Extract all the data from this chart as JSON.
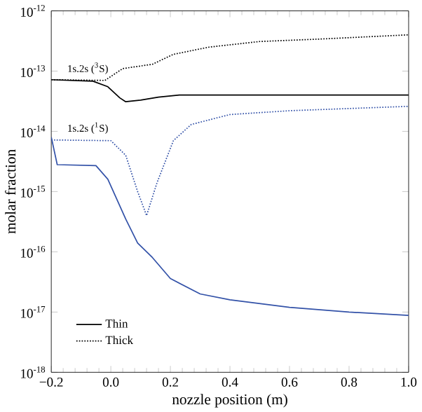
{
  "chart_data": {
    "type": "line",
    "xlabel": "nozzle position (m)",
    "ylabel": "molar fraction",
    "log": "y",
    "xlim": [
      -0.2,
      1.0
    ],
    "ylim": [
      1e-18,
      1e-12
    ],
    "xticks": [
      {
        "value": -0.2,
        "label": "−0.2"
      },
      {
        "value": 0,
        "label": "0.0"
      },
      {
        "value": 0.2,
        "label": "0.2"
      },
      {
        "value": 0.4,
        "label": "0.4"
      },
      {
        "value": 0.6,
        "label": "0.6"
      },
      {
        "value": 0.8,
        "label": "0.8"
      },
      {
        "value": 1.0,
        "label": "1.0"
      }
    ],
    "yticks": [
      {
        "value": 1e-18,
        "label": "10$^{-18}$"
      },
      {
        "value": 1e-17,
        "label": "10$^{-17}$"
      },
      {
        "value": 1e-16,
        "label": "10$^{-16}$"
      },
      {
        "value": 1e-15,
        "label": "10$^{-15}$"
      },
      {
        "value": 1e-14,
        "label": "10$^{-14}$"
      },
      {
        "value": 1e-13,
        "label": "10$^{-13}$"
      },
      {
        "value": 1e-12,
        "label": "10$^{-12}$"
      }
    ],
    "legend": "bottom left",
    "grid": false,
    "series": [
      {
        "name": "Thin",
        "color": "#000000",
        "line_style": "solid",
        "x": [
          -0.2,
          -0.06,
          -0.01,
          0.03,
          0.05,
          0.1,
          0.16,
          0.23,
          0.5,
          1.0
        ],
        "values": [
          7.2e-14,
          6.8e-14,
          5.5e-14,
          3.6e-14,
          3.1e-14,
          3.3e-14,
          3.7e-14,
          4e-14,
          4e-14,
          4e-14
        ]
      },
      {
        "name": "Thick",
        "color": "#000000",
        "line_style": "dotted",
        "x": [
          -0.2,
          -0.02,
          0.04,
          0.14,
          0.21,
          0.33,
          0.5,
          0.7,
          1.0
        ],
        "values": [
          7.2e-14,
          7e-14,
          1.1e-13,
          1.3e-13,
          1.9e-13,
          2.5e-13,
          3.1e-13,
          3.4e-13,
          4e-13
        ]
      },
      {
        "color": "#3352a8",
        "line_style": "solid",
        "x": [
          -0.2,
          -0.18,
          -0.05,
          -0.01,
          0.05,
          0.09,
          0.14,
          0.2,
          0.3,
          0.4,
          0.6,
          0.8,
          1.0
        ],
        "values": [
          8e-15,
          2.8e-15,
          2.7e-15,
          1.6e-15,
          3.5e-16,
          1.4e-16,
          8e-17,
          3.6e-17,
          2e-17,
          1.6e-17,
          1.2e-17,
          1e-17,
          8.8e-18
        ]
      },
      {
        "color": "#3352a8",
        "line_style": "dotted",
        "x": [
          -0.2,
          0.0,
          0.05,
          0.09,
          0.12,
          0.155,
          0.21,
          0.27,
          0.4,
          0.6,
          1.0
        ],
        "values": [
          7.2e-15,
          7e-15,
          4e-15,
          1e-15,
          4e-16,
          1.4e-15,
          7e-15,
          1.3e-14,
          1.9e-14,
          2.2e-14,
          2.6e-14
        ]
      }
    ],
    "annotations": [
      "1s.2s ($^{3}$S)",
      "1s.2s ($^{1}$S)"
    ]
  }
}
